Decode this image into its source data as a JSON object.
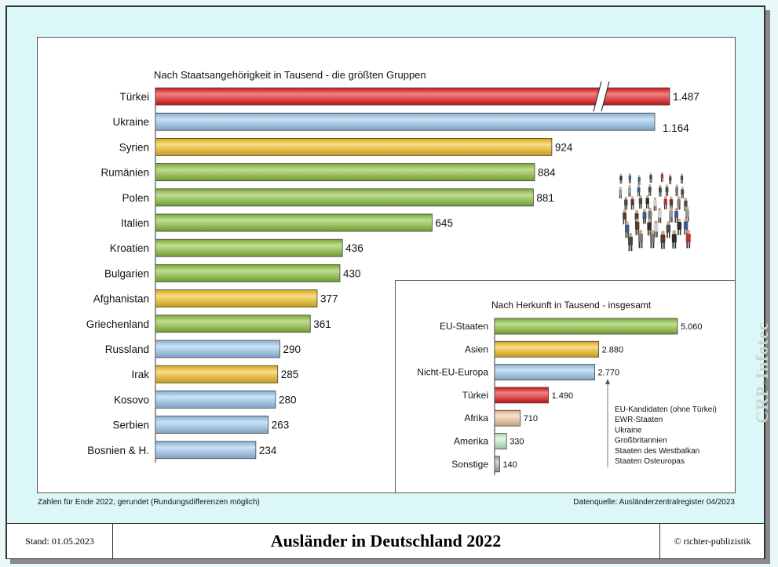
{
  "chart_data": [
    {
      "type": "bar",
      "orientation": "horizontal",
      "title": "Nach Staatsangehörigkeit in Tausend - die größten Gruppen",
      "categories": [
        "Türkei",
        "Ukraine",
        "Syrien",
        "Rumänien",
        "Polen",
        "Italien",
        "Kroatien",
        "Bulgarien",
        "Afghanistan",
        "Griechenland",
        "Russland",
        "Irak",
        "Kosovo",
        "Serbien",
        "Bosnien & H."
      ],
      "values": [
        1487,
        1164,
        924,
        884,
        881,
        645,
        436,
        430,
        377,
        361,
        290,
        285,
        280,
        263,
        234
      ],
      "value_labels": [
        "1.487",
        "1.164",
        "924",
        "884",
        "881",
        "645",
        "436",
        "430",
        "377",
        "361",
        "290",
        "285",
        "280",
        "263",
        "234"
      ],
      "groups": [
        "tuerkei",
        "nicht-eu",
        "asien",
        "eu",
        "eu",
        "eu",
        "eu",
        "eu",
        "asien",
        "eu",
        "nicht-eu",
        "asien",
        "nicht-eu",
        "nicht-eu",
        "nicht-eu"
      ],
      "axis_break_on": "Türkei",
      "xlabel": "",
      "ylabel": ""
    },
    {
      "type": "bar",
      "orientation": "horizontal",
      "title": "Nach Herkunft in Tausend - insgesamt",
      "categories": [
        "EU-Staaten",
        "Asien",
        "Nicht-EU-Europa",
        "Türkei",
        "Afrika",
        "Amerika",
        "Sonstige"
      ],
      "values": [
        5060,
        2880,
        2770,
        1490,
        710,
        330,
        140
      ],
      "value_labels": [
        "5.060",
        "2.880",
        "2.770",
        "1.490",
        "710",
        "330",
        "140"
      ],
      "colors": [
        "#8cc33a",
        "#f7c21b",
        "#9ecbf1",
        "#e8161a",
        "#f8c9a0",
        "#c6f5c9",
        "#b0b0b0"
      ],
      "annotation": [
        "EU-Kandidaten (ohne Türkei)",
        "EWR-Staaten",
        "Ukraine",
        "Großbritannien",
        "Staaten des Westbalkan",
        "Staaten Osteuropas"
      ]
    }
  ],
  "group_colors": {
    "tuerkei": "#e8161a",
    "nicht-eu": "#9ecbf1",
    "asien": "#f7c21b",
    "eu": "#8cc33a"
  },
  "notes": {
    "left": "Zahlen für Ende 2022, gerundet (Rundungsdifferenzen möglich)",
    "right": "Datenquelle: Ausländerzentralregister 04/2023"
  },
  "footer": {
    "stand": "Stand: 01.05.2023",
    "title": "Ausländer in Deutschland 2022",
    "copyright": "© richter-publizistik"
  },
  "watermark": "CRP-Infotec",
  "image_icon": "crowd-of-people-icon"
}
